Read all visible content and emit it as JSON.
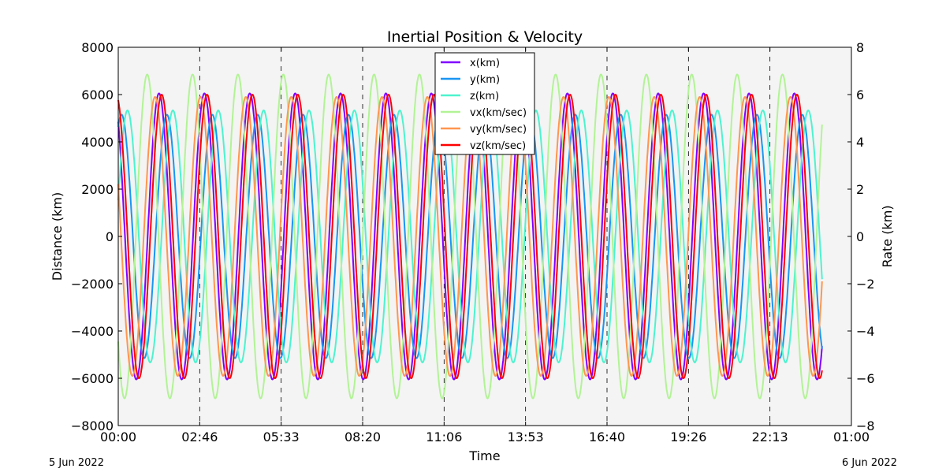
{
  "chart_data": {
    "type": "line",
    "title": "Inertial Position & Velocity",
    "xlabel": "Time",
    "ylabel_left": "Distance (km)",
    "ylabel_right": "Rate (km)",
    "date_left": "5 Jun 2022",
    "date_right": "6 Jun 2022",
    "x_unit": "seconds since 00:00 5 Jun 2022",
    "xlim": [
      0,
      90000
    ],
    "x_ticks": [
      0,
      10000,
      20000,
      30000,
      40000,
      50000,
      60000,
      70000,
      80000,
      90000
    ],
    "x_tick_labels": [
      "00:00",
      "02:46",
      "05:33",
      "08:20",
      "11:06",
      "13:53",
      "16:40",
      "19:26",
      "22:13",
      "01:00"
    ],
    "ylim_left": [
      -8000,
      8000
    ],
    "y_ticks_left": [
      "8000",
      "6000",
      "4000",
      "2000",
      "0",
      "−2000",
      "−4000",
      "−6000",
      "−8000"
    ],
    "ylim_right": [
      -8,
      8
    ],
    "y_ticks_right": [
      "8",
      "6",
      "4",
      "2",
      "0",
      "−2",
      "−4",
      "−6",
      "−8"
    ],
    "grid": "vertical dashed lines at x ticks",
    "legend_placement": "top-center",
    "data_range_x": [
      0,
      86400
    ],
    "series": [
      {
        "name": "x(km)",
        "axis": "left",
        "color": "#8000ff",
        "shape": "sinusoid",
        "amplitude": 6050,
        "period_s": 5571,
        "first_peak_s": 5003
      },
      {
        "name": "y(km)",
        "axis": "left",
        "color": "#1996f3",
        "shape": "sinusoid",
        "amplitude": 5150,
        "period_s": 5571,
        "first_peak_s": 5971
      },
      {
        "name": "z(km)",
        "axis": "left",
        "color": "#4df3ce",
        "shape": "sinusoid",
        "amplitude": 5330,
        "period_s": 5571,
        "first_peak_s": 6706
      },
      {
        "name": "vx(km/sec)",
        "axis": "right",
        "color": "#b2f396",
        "shape": "sinusoid",
        "amplitude": 6.85,
        "period_s": 5571,
        "first_peak_s": 3552
      },
      {
        "name": "vy(km/sec)",
        "axis": "right",
        "color": "#ff964f",
        "shape": "sinusoid",
        "amplitude": 5.9,
        "period_s": 5571,
        "first_peak_s": 4519
      },
      {
        "name": "vz(km/sec)",
        "axis": "right",
        "color": "#ff0000",
        "shape": "sinusoid",
        "amplitude": 6.0,
        "period_s": 5571,
        "first_peak_s": 5323
      }
    ]
  }
}
